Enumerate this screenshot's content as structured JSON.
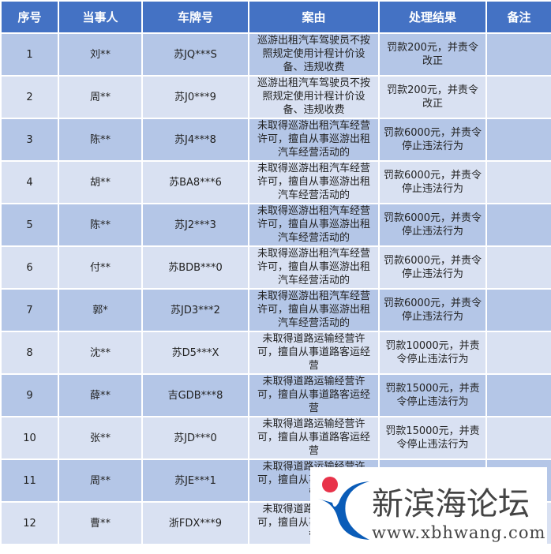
{
  "headers": [
    "序号",
    "当事人",
    "车牌号",
    "案由",
    "处理结果",
    "备注"
  ],
  "rows": [
    {
      "no": "1",
      "party": "刘**",
      "plate": "苏JQ***S",
      "reason": "巡游出租汽车驾驶员不按照规定使用计程计价设备、违规收费",
      "result": "罚款200元，并责令改正",
      "note": ""
    },
    {
      "no": "2",
      "party": "周**",
      "plate": "苏J0***9",
      "reason": "巡游出租汽车驾驶员不按照规定使用计程计价设备、违规收费",
      "result": "罚款200元，并责令改正",
      "note": ""
    },
    {
      "no": "3",
      "party": "陈**",
      "plate": "苏J4***8",
      "reason": "未取得巡游出租汽车经营许可，擅自从事巡游出租汽车经营活动的",
      "result": "罚款6000元，并责令停止违法行为",
      "note": ""
    },
    {
      "no": "4",
      "party": "胡**",
      "plate": "苏BA8***6",
      "reason": "未取得巡游出租汽车经营许可，擅自从事巡游出租汽车经营活动的",
      "result": "罚款6000元，并责令停止违法行为",
      "note": ""
    },
    {
      "no": "5",
      "party": "陈**",
      "plate": "苏J2***3",
      "reason": "未取得巡游出租汽车经营许可，擅自从事巡游出租汽车经营活动的",
      "result": "罚款6000元，并责令停止违法行为",
      "note": ""
    },
    {
      "no": "6",
      "party": "付**",
      "plate": "苏BDB***0",
      "reason": "未取得巡游出租汽车经营许可，擅自从事巡游出租汽车经营活动的",
      "result": "罚款6000元，并责令停止违法行为",
      "note": ""
    },
    {
      "no": "7",
      "party": "郭*",
      "plate": "苏JD3***2",
      "reason": "未取得巡游出租汽车经营许可，擅自从事巡游出租汽车经营活动的",
      "result": "罚款6000元，并责令停止违法行为",
      "note": ""
    },
    {
      "no": "8",
      "party": "沈**",
      "plate": "苏D5***X",
      "reason": "未取得道路运输经营许可，擅自从事道路客运经营",
      "result": "罚款10000元，并责令停止违法行为",
      "note": ""
    },
    {
      "no": "9",
      "party": "薛**",
      "plate": "吉GDB***8",
      "reason": "未取得道路运输经营许可，擅自从事道路客运经营",
      "result": "罚款15000元，并责令停止违法行为",
      "note": ""
    },
    {
      "no": "10",
      "party": "张**",
      "plate": "苏JD***0",
      "reason": "未取得道路运输经营许可，擅自从事道路客运经营",
      "result": "罚款15000元，并责令停止违法行为",
      "note": ""
    },
    {
      "no": "11",
      "party": "周**",
      "plate": "苏JE***1",
      "reason": "未取得道路运输经营许可，擅自从事道路客运经营",
      "result": "",
      "note": ""
    },
    {
      "no": "12",
      "party": "曹**",
      "plate": "浙FDX***9",
      "reason": "未取得道路运输经营许可，擅自从事道路客运经营",
      "result": "",
      "note": ""
    }
  ],
  "watermark": {
    "name": "新滨海论坛",
    "url": "www.xbhwang.com",
    "colors": {
      "dot": "#e8334a",
      "arc": "#0a5cb8",
      "text": "#444444"
    }
  },
  "colors": {
    "header": "#4472c4",
    "row_odd": "#b4c6e7",
    "row_even": "#d9e1f2"
  }
}
